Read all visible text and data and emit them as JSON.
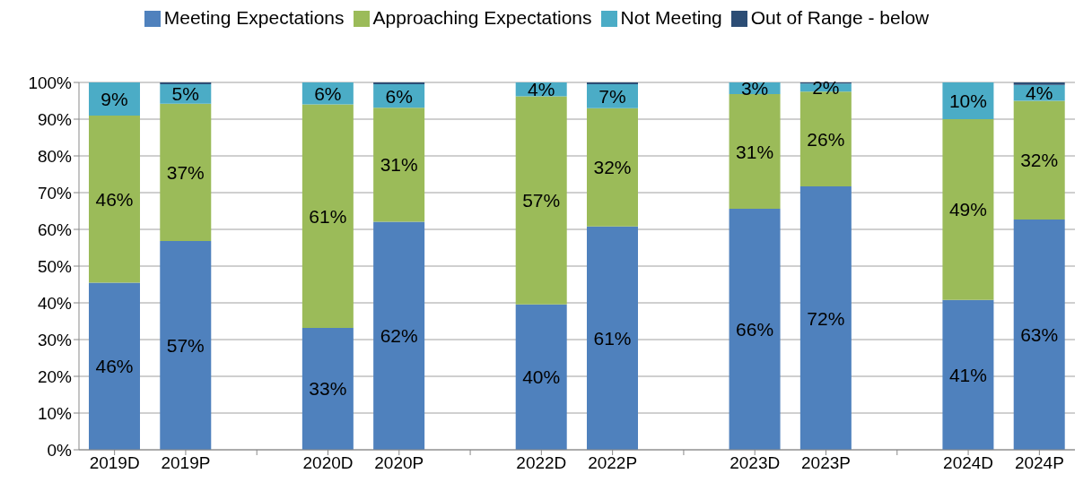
{
  "chart_data": {
    "type": "bar",
    "stacked": true,
    "categories": [
      "2019D",
      "2019P",
      null,
      "2020D",
      "2020P",
      null,
      "2022D",
      "2022P",
      null,
      "2023D",
      "2023P",
      null,
      "2024D",
      "2024P"
    ],
    "series": [
      {
        "name": "Meeting Expectations",
        "color": "#4f81bd",
        "values": [
          45.5,
          56.8,
          null,
          33.2,
          62.1,
          null,
          39.6,
          60.8,
          null,
          65.6,
          71.7,
          null,
          40.8,
          62.7
        ],
        "value_labels": [
          "46%",
          "57%",
          null,
          "33%",
          "62%",
          null,
          "40%",
          "61%",
          null,
          "66%",
          "72%",
          null,
          "41%",
          "63%"
        ]
      },
      {
        "name": "Approaching Expectations",
        "color": "#9bbb59",
        "values": [
          45.5,
          37.4,
          null,
          60.8,
          31.0,
          null,
          56.6,
          32.2,
          null,
          31.2,
          25.8,
          null,
          49.2,
          32.3
        ],
        "value_labels": [
          "46%",
          "37%",
          null,
          "61%",
          "31%",
          null,
          "57%",
          "32%",
          null,
          "31%",
          "26%",
          null,
          "49%",
          "32%"
        ]
      },
      {
        "name": "Not Meeting",
        "color": "#4bacc6",
        "values": [
          9.0,
          5.3,
          null,
          6.0,
          6.4,
          null,
          3.8,
          6.5,
          null,
          3.2,
          2.2,
          null,
          10.0,
          4.3
        ],
        "value_labels": [
          "9%",
          "5%",
          null,
          "6%",
          "6%",
          null,
          "4%",
          "7%",
          null,
          "3%",
          "2%",
          null,
          "10%",
          "4%"
        ]
      },
      {
        "name": "Out of Range - below",
        "color": "#2c4d75",
        "values": [
          0,
          0.5,
          null,
          0,
          0.5,
          null,
          0,
          0.5,
          null,
          0,
          0.3,
          null,
          0,
          0.7
        ]
      }
    ],
    "ylim": [
      0,
      100
    ],
    "yticks": [
      {
        "value": 0,
        "label": "0%"
      },
      {
        "value": 10,
        "label": "10%"
      },
      {
        "value": 20,
        "label": "20%"
      },
      {
        "value": 30,
        "label": "30%"
      },
      {
        "value": 40,
        "label": "40%"
      },
      {
        "value": 50,
        "label": "50%"
      },
      {
        "value": 60,
        "label": "60%"
      },
      {
        "value": 70,
        "label": "70%"
      },
      {
        "value": 80,
        "label": "80%"
      },
      {
        "value": 90,
        "label": "90%"
      },
      {
        "value": 100,
        "label": "100%"
      }
    ],
    "grid": "y",
    "legend": "top"
  }
}
